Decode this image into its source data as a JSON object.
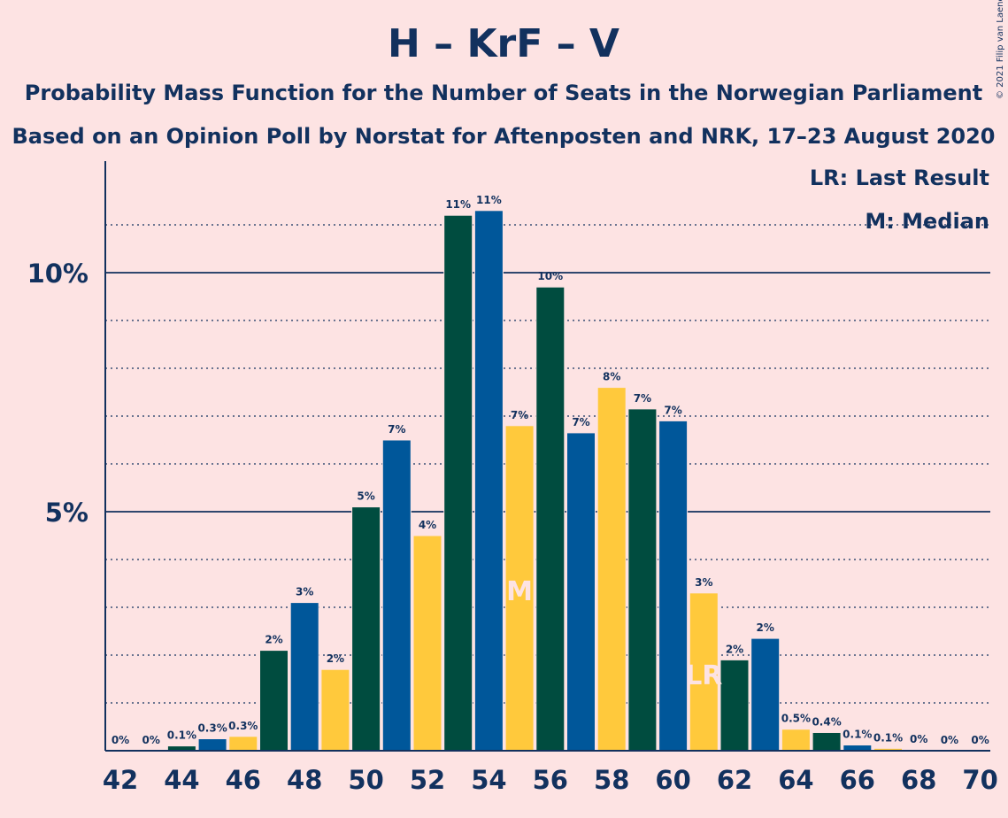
{
  "header": {
    "title": "H – KrF – V",
    "subtitle1": "Probability Mass Function for the Number of Seats in the Norwegian Parliament",
    "subtitle2": "Based on an Opinion Poll by Norstat for Aftenposten and NRK, 17–23 August 2020"
  },
  "copyright": "© 2021 Filip van Laenen",
  "legend": {
    "lr": "LR: Last Result",
    "median": "M: Median"
  },
  "markers": {
    "median_label": "M",
    "median_seat": 55,
    "lr_label": "LR",
    "lr_seat": 61
  },
  "colors": {
    "dark_green": "#004c3f",
    "blue": "#00579a",
    "yellow": "#ffc93c",
    "background": "#fde3e3",
    "text": "#12315e"
  },
  "chart_data": {
    "type": "bar",
    "x": [
      42,
      43,
      44,
      45,
      46,
      47,
      48,
      49,
      50,
      51,
      52,
      53,
      54,
      55,
      56,
      57,
      58,
      59,
      60,
      61,
      62,
      63,
      64,
      65,
      66,
      67,
      68,
      69,
      70
    ],
    "values": [
      0,
      0,
      0.1,
      0.25,
      0.3,
      2.1,
      3.1,
      1.7,
      5.1,
      6.5,
      4.5,
      11.2,
      11.3,
      6.8,
      9.7,
      6.65,
      7.6,
      7.15,
      6.9,
      3.3,
      1.9,
      2.35,
      0.45,
      0.38,
      0.12,
      0.05,
      0.02,
      0,
      0
    ],
    "labels": [
      "0%",
      "0%",
      "0.1%",
      "0.3%",
      "0.3%",
      "2%",
      "3%",
      "2%",
      "5%",
      "7%",
      "4%",
      "11%",
      "11%",
      "7%",
      "10%",
      "7%",
      "8%",
      "7%",
      "7%",
      "3%",
      "2%",
      "2%",
      "0.5%",
      "0.4%",
      "0.1%",
      "0.1%",
      "0%",
      "0%",
      "0%"
    ],
    "bar_colors": [
      "dark_green",
      "blue",
      "dark_green",
      "blue",
      "yellow",
      "dark_green",
      "blue",
      "yellow",
      "dark_green",
      "blue",
      "yellow",
      "dark_green",
      "blue",
      "yellow",
      "dark_green",
      "blue",
      "yellow",
      "dark_green",
      "blue",
      "yellow",
      "dark_green",
      "blue",
      "yellow",
      "dark_green",
      "blue",
      "yellow",
      "dark_green",
      "blue",
      "yellow"
    ],
    "x_tick_labels": [
      "42",
      "44",
      "46",
      "48",
      "50",
      "52",
      "54",
      "56",
      "58",
      "60",
      "62",
      "64",
      "66",
      "68",
      "70"
    ],
    "y_tick_labels": [
      {
        "value": 5,
        "label": "5%"
      },
      {
        "value": 10,
        "label": "10%"
      }
    ],
    "ylim": [
      0,
      12.3
    ],
    "grid": "dotted every 1%, solid at 5% and 10%"
  }
}
